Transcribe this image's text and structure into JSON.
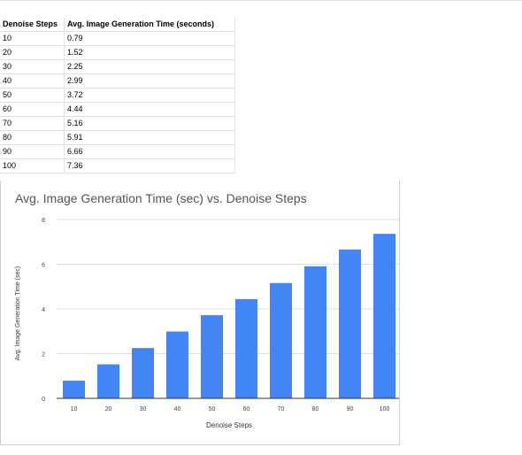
{
  "table": {
    "headers": [
      "Denoise Steps",
      "Avg. Image Generation Time (seconds)"
    ],
    "rows": [
      [
        "10",
        "0.79"
      ],
      [
        "20",
        "1.52"
      ],
      [
        "30",
        "2.25"
      ],
      [
        "40",
        "2.99"
      ],
      [
        "50",
        "3.72"
      ],
      [
        "60",
        "4.44"
      ],
      [
        "70",
        "5.16"
      ],
      [
        "80",
        "5.91"
      ],
      [
        "90",
        "6.66"
      ],
      [
        "100",
        "7.36"
      ]
    ]
  },
  "chart_data": {
    "type": "bar",
    "title": "Avg. Image Generation Time (sec) vs. Denoise Steps",
    "xlabel": "Denoise Steps",
    "ylabel": "Avg. Image Generation Time (sec)",
    "categories": [
      "10",
      "20",
      "30",
      "40",
      "50",
      "60",
      "70",
      "80",
      "90",
      "100"
    ],
    "values": [
      0.79,
      1.52,
      2.25,
      2.99,
      3.72,
      4.44,
      5.16,
      5.91,
      6.66,
      7.36
    ],
    "ylim": [
      0,
      8
    ],
    "yticks": [
      "0",
      "2",
      "4",
      "6",
      "8"
    ],
    "grid": true,
    "legend": "none",
    "bar_color": "#4285f4"
  },
  "colors": {
    "bar": "#4285f4",
    "grid": "#e0e0e0",
    "axis": "#333333",
    "title": "#555555"
  }
}
